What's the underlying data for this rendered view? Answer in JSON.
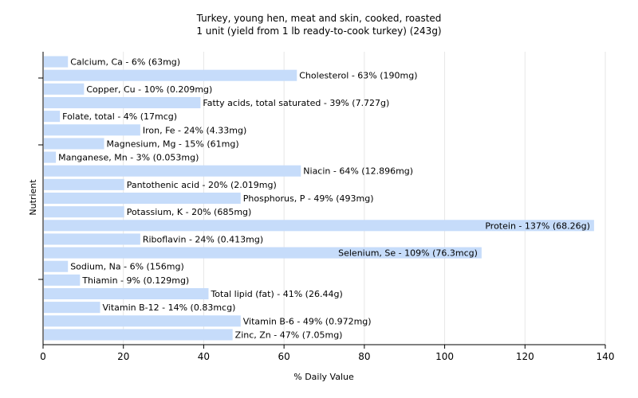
{
  "chart_data": {
    "type": "bar",
    "orientation": "horizontal",
    "title": "Turkey, young hen, meat and skin, cooked, roasted",
    "subtitle": "1 unit (yield from 1 lb ready-to-cook turkey) (243g)",
    "xlabel": "% Daily Value",
    "ylabel": "Nutrient",
    "xlim": [
      0,
      140
    ],
    "xticks": [
      "0",
      "20",
      "40",
      "60",
      "80",
      "100",
      "120",
      "140"
    ],
    "grid": true,
    "bar_color": "#c6dcfa",
    "categories": [
      "Calcium, Ca",
      "Cholesterol",
      "Copper, Cu",
      "Fatty acids, total saturated",
      "Folate, total",
      "Iron, Fe",
      "Magnesium, Mg",
      "Manganese, Mn",
      "Niacin",
      "Pantothenic acid",
      "Phosphorus, P",
      "Potassium, K",
      "Protein",
      "Riboflavin",
      "Selenium, Se",
      "Sodium, Na",
      "Thiamin",
      "Total lipid (fat)",
      "Vitamin B-12",
      "Vitamin B-6",
      "Zinc, Zn"
    ],
    "values": [
      6,
      63,
      10,
      39,
      4,
      24,
      15,
      3,
      64,
      20,
      49,
      20,
      137,
      24,
      109,
      6,
      9,
      41,
      14,
      49,
      47
    ],
    "labels": [
      "Calcium, Ca - 6% (63mg)",
      "Cholesterol - 63% (190mg)",
      "Copper, Cu - 10% (0.209mg)",
      "Fatty acids, total saturated - 39% (7.727g)",
      "Folate, total - 4% (17mcg)",
      "Iron, Fe - 24% (4.33mg)",
      "Magnesium, Mg - 15% (61mg)",
      "Manganese, Mn - 3% (0.053mg)",
      "Niacin - 64% (12.896mg)",
      "Pantothenic acid - 20% (2.019mg)",
      "Phosphorus, P - 49% (493mg)",
      "Potassium, K - 20% (685mg)",
      "Protein - 137% (68.26g)",
      "Riboflavin - 24% (0.413mg)",
      "Selenium, Se - 109% (76.3mcg)",
      "Sodium, Na - 6% (156mg)",
      "Thiamin - 9% (0.129mg)",
      "Total lipid (fat) - 41% (26.44g)",
      "Vitamin B-12 - 14% (0.83mcg)",
      "Vitamin B-6 - 49% (0.972mg)",
      "Zinc, Zn - 47% (7.05mg)"
    ]
  }
}
